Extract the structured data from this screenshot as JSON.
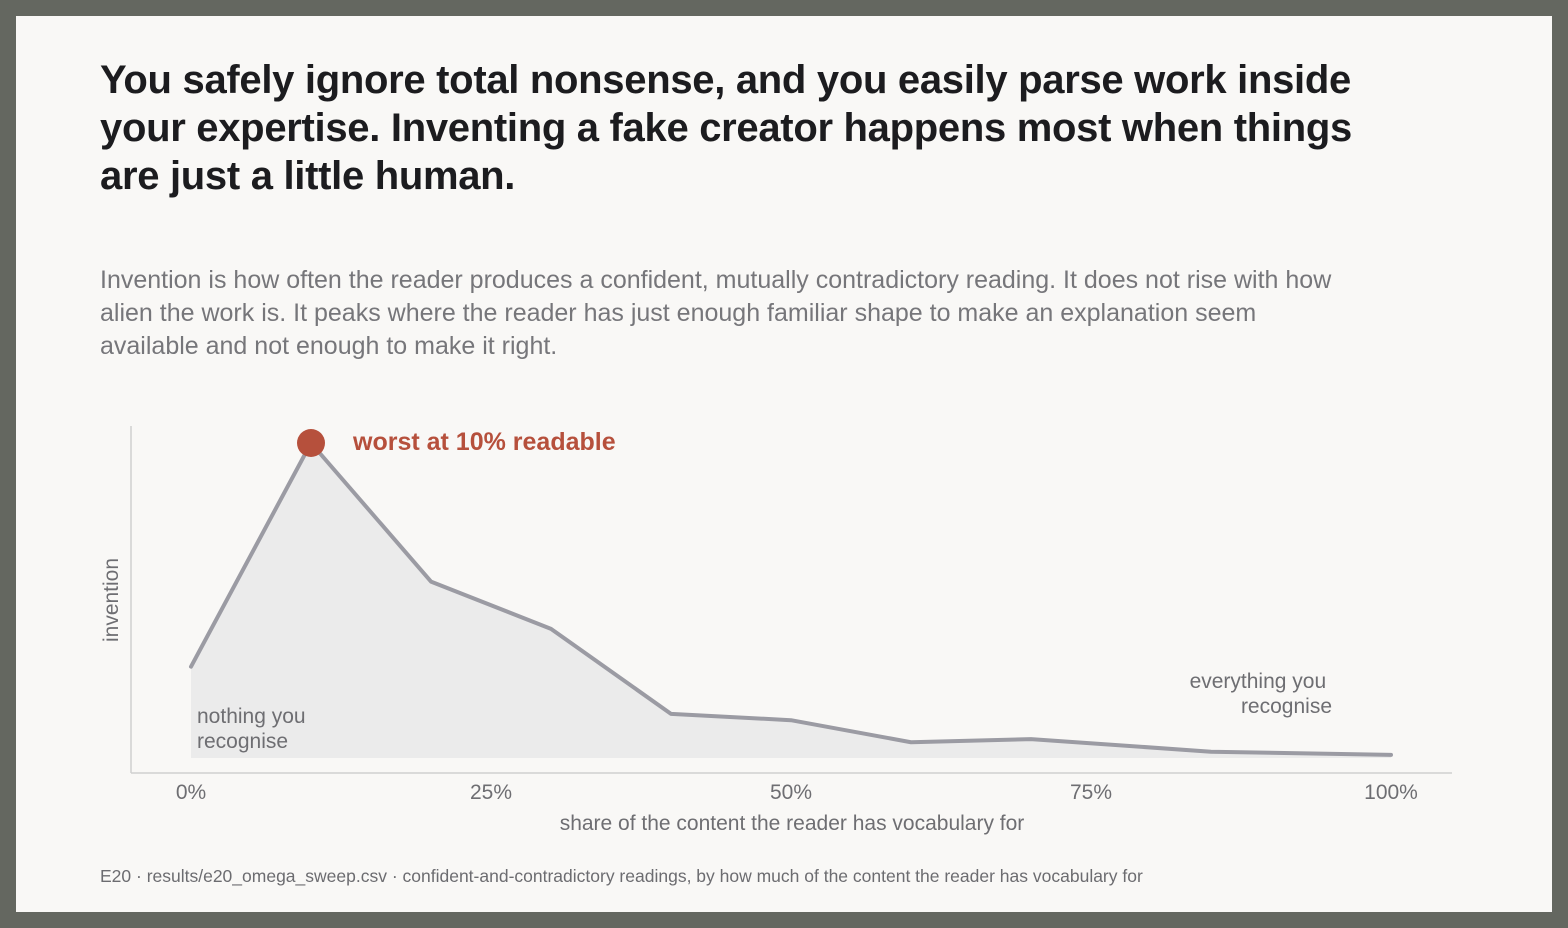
{
  "headline": "You safely ignore total nonsense, and you easily parse work inside your expertise. Inventing a fake creator happens most when things are just a little human.",
  "subhead": "Invention is how often the reader produces a confident, mutually contradictory reading. It does not rise with how alien the work is. It peaks where the reader has just enough familiar shape to make an explanation seem available and not enough to make it right.",
  "footer": "E20 · results/e20_omega_sweep.csv · confident-and-contradictory readings, by how much of the content the reader has vocabulary for",
  "colors": {
    "line": "#9b9ba3",
    "area": "#ebebeb",
    "peak": "#b6503c",
    "axis": "#cfcfcf",
    "text": "#6e6e72"
  },
  "chart_data": {
    "type": "area",
    "xlabel": "share of the content the reader has vocabulary for",
    "ylabel": "invention",
    "x_ticks": [
      "0%",
      "25%",
      "50%",
      "75%",
      "100%"
    ],
    "x": [
      0,
      10,
      20,
      30,
      40,
      50,
      60,
      70,
      85,
      100
    ],
    "y": [
      0.29,
      1.0,
      0.56,
      0.41,
      0.14,
      0.12,
      0.05,
      0.06,
      0.02,
      0.01
    ],
    "xlim": [
      -5,
      105
    ],
    "ylim": [
      0,
      1.0
    ],
    "grid": false,
    "peak": {
      "x": 10,
      "label": "worst at 10% readable"
    },
    "annotations": {
      "left": [
        "nothing you",
        "recognise"
      ],
      "right": [
        "everything you",
        "recognise"
      ]
    }
  }
}
